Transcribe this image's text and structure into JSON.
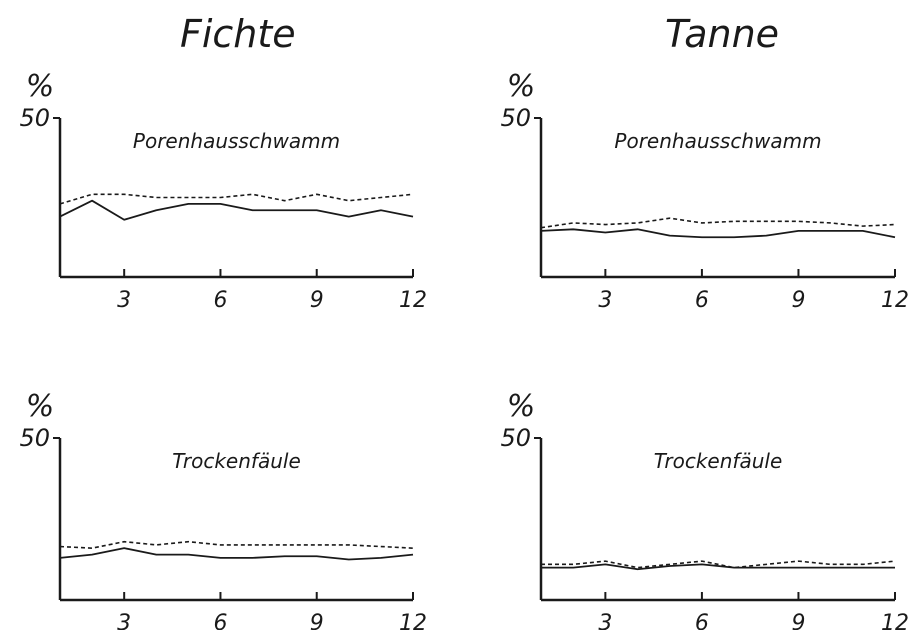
{
  "columns": {
    "left": "Fichte",
    "right": "Tanne"
  },
  "chart_data": [
    {
      "type": "line",
      "column": "Fichte",
      "title": "Porenhausschwamm",
      "unit_label": "%",
      "y_max_label": "50",
      "ylim": [
        0,
        50
      ],
      "xlim": [
        1,
        12
      ],
      "xticks": [
        "3",
        "6",
        "9",
        "12"
      ],
      "grid": false,
      "x": [
        1,
        2,
        3,
        4,
        5,
        6,
        7,
        8,
        9,
        10,
        11,
        12
      ],
      "series": [
        {
          "style": "dashed",
          "values": [
            23,
            26,
            26,
            25,
            25,
            25,
            26,
            24,
            26,
            24,
            25,
            26
          ]
        },
        {
          "style": "solid",
          "values": [
            19,
            24,
            18,
            21,
            23,
            23,
            21,
            21,
            21,
            19,
            21,
            19
          ]
        }
      ]
    },
    {
      "type": "line",
      "column": "Tanne",
      "title": "Porenhausschwamm",
      "unit_label": "%",
      "y_max_label": "50",
      "ylim": [
        0,
        50
      ],
      "xlim": [
        1,
        12
      ],
      "xticks": [
        "3",
        "6",
        "9",
        "12"
      ],
      "grid": false,
      "x": [
        1,
        2,
        3,
        4,
        5,
        6,
        7,
        8,
        9,
        10,
        11,
        12
      ],
      "series": [
        {
          "style": "dashed",
          "values": [
            15.5,
            17,
            16.5,
            17,
            18.5,
            17,
            17.5,
            17.5,
            17.5,
            17,
            16,
            16.5
          ]
        },
        {
          "style": "solid",
          "values": [
            14.5,
            15,
            14,
            15,
            13,
            12.5,
            12.5,
            13,
            14.5,
            14.5,
            14.5,
            12.5
          ]
        }
      ]
    },
    {
      "type": "line",
      "column": "Fichte",
      "title": "Trockenfäule",
      "unit_label": "%",
      "y_max_label": "50",
      "ylim": [
        0,
        50
      ],
      "xlim": [
        1,
        12
      ],
      "xticks": [
        "3",
        "6",
        "9",
        "12"
      ],
      "grid": false,
      "x": [
        1,
        2,
        3,
        4,
        5,
        6,
        7,
        8,
        9,
        10,
        11,
        12
      ],
      "series": [
        {
          "style": "dashed",
          "values": [
            16.5,
            16,
            18,
            17,
            18,
            17,
            17,
            17,
            17,
            17,
            16.5,
            16
          ]
        },
        {
          "style": "solid",
          "values": [
            13,
            14,
            16,
            14,
            14,
            13,
            13,
            13.5,
            13.5,
            12.5,
            13,
            14
          ]
        }
      ]
    },
    {
      "type": "line",
      "column": "Tanne",
      "title": "Trockenfäule",
      "unit_label": "%",
      "y_max_label": "50",
      "ylim": [
        0,
        50
      ],
      "xlim": [
        1,
        12
      ],
      "xticks": [
        "3",
        "6",
        "9",
        "12"
      ],
      "grid": false,
      "x": [
        1,
        2,
        3,
        4,
        5,
        6,
        7,
        8,
        9,
        10,
        11,
        12
      ],
      "series": [
        {
          "style": "dashed",
          "values": [
            11,
            11,
            12,
            10,
            11,
            12,
            10,
            11,
            12,
            11,
            11,
            12
          ]
        },
        {
          "style": "solid",
          "values": [
            10,
            10,
            11,
            9.5,
            10.5,
            11,
            10,
            10,
            10,
            10,
            10,
            10
          ]
        }
      ]
    }
  ]
}
